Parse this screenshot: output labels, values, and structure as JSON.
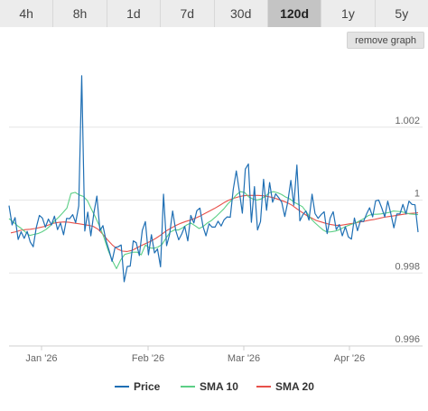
{
  "tabs": [
    {
      "label": "4h",
      "active": false
    },
    {
      "label": "8h",
      "active": false
    },
    {
      "label": "1d",
      "active": false
    },
    {
      "label": "7d",
      "active": false
    },
    {
      "label": "30d",
      "active": false
    },
    {
      "label": "120d",
      "active": true
    },
    {
      "label": "1y",
      "active": false
    },
    {
      "label": "5y",
      "active": false
    }
  ],
  "remove_graph_label": "remove graph",
  "colors": {
    "price": "#1f6fb4",
    "sma10": "#5ccf86",
    "sma20": "#e8504a",
    "grid": "#e6e6e6",
    "active_tab": "#c4c4c4"
  },
  "chart_data": {
    "type": "line",
    "x_ticks": [
      "Jan '26",
      "Feb '26",
      "Mar '26",
      "Apr '26"
    ],
    "y_ticks": [
      0.996,
      0.998,
      1,
      1.002
    ],
    "y_tick_labels": [
      "0.996",
      "0.998",
      "1",
      "1.002"
    ],
    "ylim": [
      0.996,
      1.004
    ],
    "grid": "horizontal",
    "legend_position": "bottom",
    "series": [
      {
        "name": "Price",
        "color_key": "price",
        "values": [
          0.99985,
          0.99932,
          0.99952,
          0.99892,
          0.99913,
          0.99895,
          0.99914,
          0.99885,
          0.99872,
          0.99925,
          0.99958,
          0.99951,
          0.99926,
          0.99948,
          0.99932,
          0.99956,
          0.99919,
          0.99937,
          0.99905,
          0.9995,
          0.99949,
          0.9996,
          0.99938,
          0.99984,
          1.00341,
          0.99915,
          0.99967,
          0.99902,
          0.99965,
          1.00011,
          0.99916,
          0.9993,
          0.99889,
          0.99863,
          0.99832,
          0.9987,
          0.99872,
          0.99877,
          0.99776,
          0.99818,
          0.99819,
          0.99888,
          0.99883,
          0.99848,
          0.99917,
          0.99941,
          0.9985,
          0.99905,
          0.99855,
          0.99866,
          0.99817,
          1.00016,
          0.99875,
          0.99906,
          0.9997,
          0.99917,
          0.99891,
          0.99907,
          0.99928,
          0.99888,
          0.99958,
          0.99937,
          0.99971,
          0.99978,
          0.99928,
          0.99902,
          0.99935,
          0.99926,
          0.99926,
          0.99942,
          0.99929,
          0.99946,
          0.99954,
          0.99953,
          1.00029,
          1.0008,
          1.00025,
          0.99964,
          1.00085,
          1.00099,
          0.99939,
          1.00037,
          0.99918,
          0.99941,
          1.00057,
          0.99972,
          1.00048,
          0.99994,
          1.00017,
          1.00007,
          0.99994,
          0.99955,
          0.99995,
          1.00054,
          0.99986,
          1.00096,
          0.99943,
          0.9996,
          0.9997,
          0.99945,
          1.00016,
          0.99963,
          0.9995,
          0.9996,
          0.99968,
          0.99908,
          0.99951,
          0.99968,
          0.99919,
          0.99933,
          0.99902,
          0.99927,
          0.99899,
          0.99893,
          0.99951,
          0.99916,
          0.99943,
          0.99941,
          0.99962,
          0.99979,
          0.99954,
          0.99998,
          1.0,
          0.99979,
          0.99954,
          0.99997,
          0.99963,
          0.99924,
          0.99962,
          0.99962,
          0.99988,
          0.99962,
          0.99997,
          0.99988,
          0.99987,
          0.99912
        ]
      },
      {
        "name": "SMA 10",
        "color_key": "sma10",
        "values": [
          0.99949,
          0.9994,
          0.9993,
          0.99922,
          0.99912,
          0.99903,
          0.99906,
          0.99908,
          0.99913,
          0.9992,
          0.9993,
          0.99942,
          0.99953,
          0.99965,
          0.99978,
          1.00018,
          1.00021,
          1.00014,
          1.0001,
          0.99998,
          0.99974,
          0.99951,
          0.99926,
          0.99897,
          0.99862,
          0.99834,
          0.99812,
          0.99835,
          0.99851,
          0.99854,
          0.99857,
          0.99857,
          0.9985,
          0.99877,
          0.99869,
          0.99868,
          0.99871,
          0.99878,
          0.99896,
          0.99912,
          0.99918,
          0.99918,
          0.99924,
          0.99932,
          0.99937,
          0.9993,
          0.99922,
          0.99928,
          0.99937,
          0.99944,
          0.99954,
          0.99965,
          0.99976,
          0.9999,
          1.00001,
          1.00014,
          1.00023,
          1.00021,
          1.00009,
          1.00003,
          1.0,
          1.00003,
          1.0001,
          1.0002,
          1.00023,
          1.0002,
          1.00015,
          1.00008,
          1.00003,
          0.99994,
          0.99988,
          0.99982,
          0.99967,
          0.9995,
          0.99938,
          0.99928,
          0.99918,
          0.99912,
          0.99913,
          0.99915,
          0.99919,
          0.99925,
          0.9993,
          0.99934,
          0.99938,
          0.99944,
          0.9995,
          0.99958,
          0.99961,
          0.99961,
          0.99962,
          0.99964,
          0.99966,
          0.9997,
          0.99969,
          0.99968,
          0.99965,
          0.99962,
          0.99961,
          0.9996
        ]
      },
      {
        "name": "SMA 20",
        "color_key": "sma20",
        "values": [
          0.9991,
          0.99913,
          0.99917,
          0.99919,
          0.9992,
          0.99922,
          0.99925,
          0.99928,
          0.99933,
          0.99937,
          0.99939,
          0.9994,
          0.99939,
          0.99937,
          0.99935,
          0.99933,
          0.99931,
          0.99928,
          0.9992,
          0.99906,
          0.9989,
          0.99876,
          0.99866,
          0.9986,
          0.99859,
          0.99862,
          0.99869,
          0.99876,
          0.99882,
          0.99888,
          0.99896,
          0.99905,
          0.99915,
          0.99923,
          0.9993,
          0.99936,
          0.99941,
          0.99945,
          0.9995,
          0.99956,
          0.99963,
          0.9997,
          0.99977,
          0.99985,
          0.99993,
          1.0,
          1.00005,
          1.00009,
          1.00012,
          1.00013,
          1.00013,
          1.00013,
          1.00012,
          1.0001,
          1.00007,
          1.00003,
          0.99998,
          0.99993,
          0.99986,
          0.99976,
          0.99967,
          0.99958,
          0.99951,
          0.99944,
          0.9994,
          0.99936,
          0.99933,
          0.99931,
          0.99931,
          0.99933,
          0.99935,
          0.99937,
          0.9994,
          0.99942,
          0.99945,
          0.99947,
          0.9995,
          0.99953,
          0.99955,
          0.99957,
          0.99959,
          0.99961,
          0.99963,
          0.99964,
          0.99965
        ]
      }
    ]
  }
}
